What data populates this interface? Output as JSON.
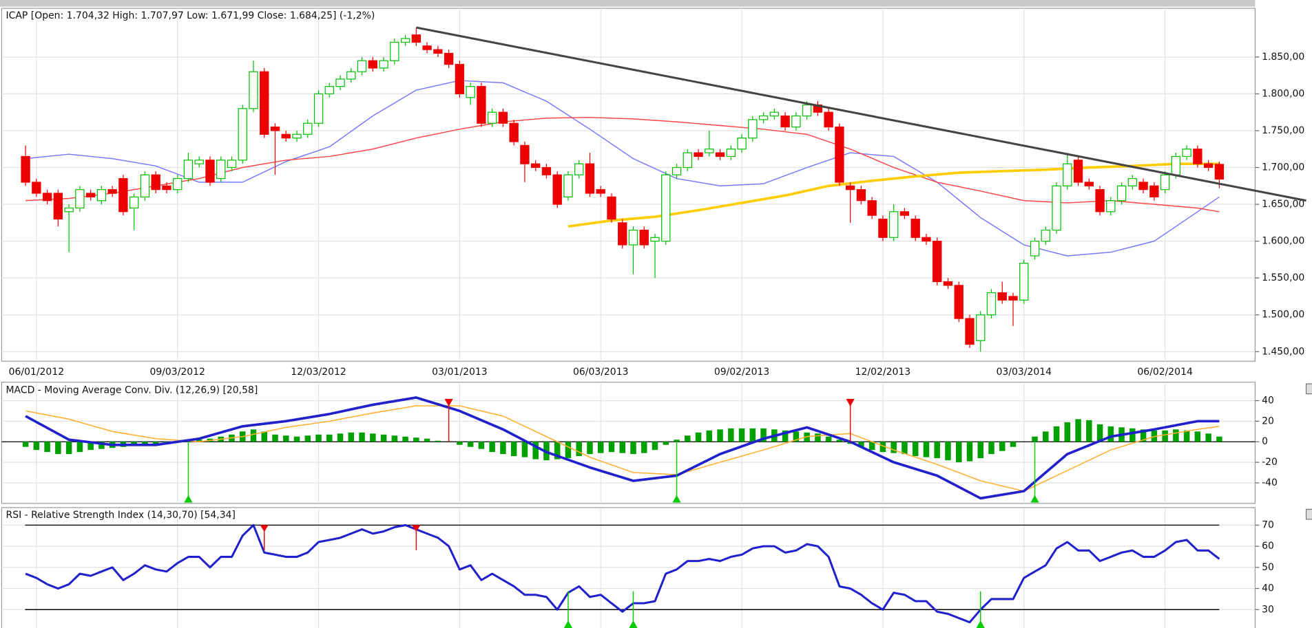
{
  "chart_data": [
    {
      "type": "candlestick",
      "title": "ICAP [Open: 1.704,32  High: 1.707,97  Low: 1.671,99  Close: 1.684,25] (-1,2%)",
      "xlim": [
        -2.2,
        113.3
      ],
      "xticks": [
        {
          "value": 1,
          "label": "06/01/2012"
        },
        {
          "value": 14,
          "label": "09/03/2012"
        },
        {
          "value": 27,
          "label": "12/03/2012"
        },
        {
          "value": 40,
          "label": "03/01/2013"
        },
        {
          "value": 53,
          "label": "06/03/2013"
        },
        {
          "value": 66,
          "label": "09/02/2013"
        },
        {
          "value": 79,
          "label": "12/02/2013"
        },
        {
          "value": 92,
          "label": "03/03/2014"
        },
        {
          "value": 105,
          "label": "06/02/2014"
        }
      ],
      "ylim": [
        1437,
        1916
      ],
      "yticks": [
        {
          "value": 1450,
          "label": "1.450,00"
        },
        {
          "value": 1500,
          "label": "1.500,00"
        },
        {
          "value": 1550,
          "label": "1.550,00"
        },
        {
          "value": 1600,
          "label": "1.600,00"
        },
        {
          "value": 1650,
          "label": "1.650,00"
        },
        {
          "value": 1700,
          "label": "1.700,00"
        },
        {
          "value": 1750,
          "label": "1.750,00"
        },
        {
          "value": 1800,
          "label": "1.800,00"
        },
        {
          "value": 1850,
          "label": "1.850,00"
        }
      ],
      "grid": true,
      "up_color": "#00c000",
      "down_color": "#ee0000",
      "open": [
        1715,
        1680,
        1665,
        1665,
        1640,
        1645,
        1665,
        1655,
        1670,
        1685,
        1645,
        1660,
        1690,
        1675,
        1670,
        1685,
        1705,
        1710,
        1685,
        1700,
        1710,
        1780,
        1830,
        1755,
        1745,
        1740,
        1745,
        1760,
        1800,
        1810,
        1820,
        1830,
        1845,
        1835,
        1845,
        1870,
        1880,
        1865,
        1860,
        1855,
        1840,
        1795,
        1810,
        1760,
        1775,
        1760,
        1730,
        1705,
        1700,
        1690,
        1660,
        1690,
        1705,
        1670,
        1660,
        1625,
        1595,
        1615,
        1600,
        1600,
        1690,
        1700,
        1720,
        1720,
        1720,
        1715,
        1725,
        1740,
        1765,
        1770,
        1770,
        1755,
        1770,
        1785,
        1775,
        1755,
        1675,
        1670,
        1655,
        1630,
        1605,
        1640,
        1630,
        1605,
        1600,
        1545,
        1540,
        1495,
        1465,
        1500,
        1530,
        1525,
        1520,
        1580,
        1600,
        1615,
        1675,
        1710,
        1680,
        1670,
        1640,
        1655,
        1675,
        1680,
        1675,
        1670,
        1690,
        1715,
        1725,
        1705,
        1704.32
      ],
      "high": [
        1730,
        1685,
        1670,
        1670,
        1650,
        1675,
        1670,
        1675,
        1675,
        1690,
        1665,
        1695,
        1695,
        1680,
        1690,
        1720,
        1715,
        1715,
        1715,
        1715,
        1785,
        1845,
        1835,
        1760,
        1750,
        1750,
        1765,
        1805,
        1815,
        1825,
        1835,
        1850,
        1850,
        1850,
        1875,
        1880,
        1890,
        1870,
        1865,
        1860,
        1845,
        1815,
        1815,
        1780,
        1780,
        1765,
        1735,
        1710,
        1705,
        1695,
        1695,
        1710,
        1720,
        1675,
        1665,
        1630,
        1620,
        1620,
        1610,
        1695,
        1705,
        1725,
        1725,
        1750,
        1725,
        1730,
        1745,
        1770,
        1775,
        1780,
        1775,
        1775,
        1790,
        1790,
        1780,
        1760,
        1680,
        1675,
        1660,
        1635,
        1650,
        1645,
        1635,
        1610,
        1605,
        1550,
        1545,
        1500,
        1505,
        1535,
        1545,
        1530,
        1575,
        1605,
        1620,
        1680,
        1720,
        1715,
        1685,
        1675,
        1660,
        1680,
        1690,
        1685,
        1680,
        1695,
        1720,
        1730,
        1730,
        1710,
        1707.97
      ],
      "low": [
        1675,
        1660,
        1650,
        1620,
        1585,
        1640,
        1655,
        1650,
        1660,
        1635,
        1615,
        1655,
        1665,
        1665,
        1665,
        1680,
        1700,
        1675,
        1680,
        1695,
        1705,
        1775,
        1740,
        1690,
        1735,
        1735,
        1740,
        1755,
        1795,
        1805,
        1815,
        1825,
        1830,
        1830,
        1840,
        1865,
        1865,
        1855,
        1850,
        1835,
        1795,
        1785,
        1755,
        1755,
        1755,
        1730,
        1680,
        1695,
        1685,
        1645,
        1655,
        1685,
        1660,
        1660,
        1625,
        1590,
        1555,
        1590,
        1550,
        1595,
        1685,
        1695,
        1710,
        1715,
        1710,
        1710,
        1720,
        1735,
        1760,
        1765,
        1750,
        1750,
        1765,
        1770,
        1750,
        1675,
        1625,
        1650,
        1630,
        1600,
        1600,
        1630,
        1600,
        1595,
        1540,
        1535,
        1490,
        1455,
        1450,
        1495,
        1515,
        1485,
        1515,
        1575,
        1595,
        1610,
        1670,
        1675,
        1670,
        1635,
        1635,
        1650,
        1670,
        1665,
        1655,
        1665,
        1685,
        1710,
        1700,
        1695,
        1671.99
      ],
      "close": [
        1680,
        1665,
        1655,
        1630,
        1645,
        1670,
        1660,
        1670,
        1665,
        1640,
        1660,
        1690,
        1670,
        1670,
        1685,
        1710,
        1710,
        1680,
        1710,
        1710,
        1780,
        1830,
        1745,
        1750,
        1740,
        1745,
        1760,
        1800,
        1810,
        1820,
        1830,
        1845,
        1835,
        1845,
        1870,
        1875,
        1870,
        1860,
        1855,
        1840,
        1800,
        1810,
        1760,
        1775,
        1760,
        1735,
        1705,
        1700,
        1690,
        1650,
        1690,
        1705,
        1665,
        1665,
        1630,
        1595,
        1615,
        1595,
        1605,
        1690,
        1700,
        1720,
        1715,
        1725,
        1715,
        1725,
        1740,
        1765,
        1770,
        1775,
        1755,
        1770,
        1785,
        1775,
        1755,
        1680,
        1670,
        1655,
        1635,
        1605,
        1640,
        1635,
        1605,
        1600,
        1545,
        1540,
        1495,
        1460,
        1500,
        1530,
        1520,
        1520,
        1570,
        1600,
        1615,
        1675,
        1705,
        1680,
        1675,
        1640,
        1655,
        1675,
        1685,
        1670,
        1660,
        1690,
        1715,
        1725,
        1705,
        1700,
        1684.25
      ],
      "lines": [
        {
          "color": "#7777ff",
          "x": [
            0,
            4,
            8,
            12,
            16,
            20,
            24,
            28,
            32,
            36,
            40,
            44,
            48,
            52,
            56,
            60,
            64,
            68,
            72,
            76,
            80,
            84,
            88,
            92,
            96,
            100,
            104,
            108,
            110
          ],
          "values": [
            1712,
            1718,
            1712,
            1702,
            1680,
            1680,
            1708,
            1728,
            1770,
            1805,
            1818,
            1815,
            1790,
            1752,
            1712,
            1685,
            1675,
            1678,
            1700,
            1720,
            1715,
            1680,
            1632,
            1595,
            1580,
            1585,
            1600,
            1640,
            1660
          ]
        },
        {
          "color": "#ff4444",
          "x": [
            0,
            4,
            8,
            12,
            16,
            20,
            24,
            28,
            32,
            36,
            40,
            44,
            48,
            52,
            56,
            60,
            64,
            68,
            72,
            76,
            80,
            84,
            88,
            92,
            96,
            100,
            104,
            108,
            110
          ],
          "values": [
            1655,
            1658,
            1665,
            1675,
            1685,
            1700,
            1710,
            1715,
            1725,
            1740,
            1752,
            1762,
            1767,
            1768,
            1766,
            1762,
            1757,
            1752,
            1745,
            1725,
            1700,
            1680,
            1668,
            1655,
            1652,
            1655,
            1650,
            1645,
            1640
          ]
        },
        {
          "color": "#ffcc00",
          "x": [
            50,
            54,
            58,
            62,
            66,
            70,
            74,
            78,
            82,
            86,
            90,
            94,
            98,
            102,
            106,
            110
          ],
          "values": [
            1620,
            1628,
            1633,
            1642,
            1652,
            1662,
            1675,
            1682,
            1688,
            1693,
            1695,
            1697,
            1700,
            1702,
            1705,
            1705
          ]
        }
      ],
      "trendline": {
        "color": "#444444",
        "x": [
          36,
          118
        ],
        "values": [
          1890,
          1655
        ]
      }
    },
    {
      "type": "macd",
      "title": "MACD - Moving Average Conv. Div. (12,26,9) [20,58]",
      "ylim": [
        -60,
        58
      ],
      "yticks": [
        -40,
        -20,
        0,
        20,
        40
      ],
      "grid": true,
      "histogram": {
        "color": "#00a000",
        "values": [
          -5,
          -8,
          -10,
          -12,
          -12,
          -10,
          -8,
          -7,
          -6,
          -5,
          -4,
          -3,
          -2,
          -1,
          0,
          1,
          2,
          3,
          5,
          7,
          10,
          12,
          10,
          7,
          6,
          5,
          6,
          7,
          7,
          8,
          9,
          9,
          8,
          7,
          6,
          5,
          4,
          3,
          1,
          0,
          -3,
          -5,
          -7,
          -10,
          -12,
          -14,
          -15,
          -17,
          -18,
          -17,
          -16,
          -14,
          -12,
          -11,
          -10,
          -11,
          -12,
          -11,
          -8,
          -3,
          2,
          6,
          9,
          11,
          12,
          13,
          13,
          13,
          13,
          12,
          11,
          10,
          9,
          8,
          5,
          2,
          -2,
          -5,
          -8,
          -10,
          -11,
          -12,
          -14,
          -15,
          -16,
          -18,
          -20,
          -19,
          -16,
          -12,
          -9,
          -5,
          0,
          5,
          10,
          15,
          19,
          22,
          21,
          17,
          15,
          14,
          13,
          12,
          11,
          11,
          12,
          11,
          10,
          8,
          5
        ]
      },
      "lines": [
        {
          "color": "#ffb030",
          "x": [
            0,
            4,
            8,
            12,
            16,
            20,
            24,
            28,
            32,
            36,
            40,
            44,
            48,
            52,
            56,
            60,
            64,
            68,
            72,
            76,
            80,
            84,
            88,
            92,
            96,
            100,
            104,
            108,
            110
          ],
          "values": [
            30,
            22,
            10,
            3,
            0,
            5,
            14,
            20,
            28,
            35,
            35,
            25,
            5,
            -15,
            -30,
            -32,
            -20,
            -8,
            5,
            8,
            -8,
            -22,
            -38,
            -48,
            -28,
            -8,
            5,
            12,
            15
          ]
        },
        {
          "color": "#2020cc",
          "x": [
            0,
            4,
            8,
            12,
            16,
            20,
            24,
            28,
            32,
            36,
            40,
            44,
            48,
            52,
            56,
            60,
            64,
            68,
            72,
            76,
            80,
            84,
            88,
            92,
            96,
            100,
            104,
            108,
            110
          ],
          "values": [
            25,
            2,
            -3,
            -3,
            3,
            15,
            20,
            27,
            36,
            43,
            30,
            12,
            -10,
            -25,
            -38,
            -33,
            -12,
            3,
            14,
            0,
            -20,
            -33,
            -55,
            -48,
            -12,
            5,
            12,
            20,
            20
          ]
        }
      ],
      "buy_signals": [
        15,
        60,
        93
      ],
      "sell_signals": [
        39,
        76
      ],
      "buy_color": "#00cc00",
      "sell_color": "#ee0000"
    },
    {
      "type": "rsi",
      "title": "RSI - Relative Strength Index (14,30,70) [54,34]",
      "ylim": [
        21.3,
        78.3
      ],
      "yticks": [
        30,
        40,
        50,
        60,
        70
      ],
      "grid": true,
      "levels": [
        30,
        70
      ],
      "color": "#2020cc",
      "values": [
        47,
        45,
        42,
        40,
        42,
        47,
        46,
        48,
        50,
        44,
        47,
        51,
        49,
        48,
        52,
        55,
        55,
        50,
        55,
        55,
        65,
        70,
        57,
        56,
        55,
        55,
        57,
        62,
        63,
        64,
        66,
        68,
        66,
        67,
        69,
        70,
        68,
        66,
        64,
        60,
        49,
        51,
        44,
        47,
        44,
        41,
        37,
        37,
        36,
        30,
        38,
        41,
        36,
        37,
        33,
        29,
        33,
        33,
        34,
        47,
        49,
        53,
        53,
        54,
        53,
        55,
        56,
        59,
        60,
        60,
        57,
        58,
        61,
        60,
        55,
        41,
        40,
        37,
        33,
        30,
        38,
        37,
        34,
        34,
        29,
        28,
        26,
        24,
        30,
        35,
        35,
        35,
        45,
        48,
        51,
        59,
        62,
        58,
        58,
        53,
        55,
        57,
        58,
        55,
        55,
        58,
        62,
        63,
        58,
        58,
        54
      ],
      "buy_signals": [
        50,
        56,
        88
      ],
      "sell_signals": [
        22,
        36
      ],
      "buy_color": "#00cc00",
      "sell_color": "#ee0000"
    }
  ]
}
